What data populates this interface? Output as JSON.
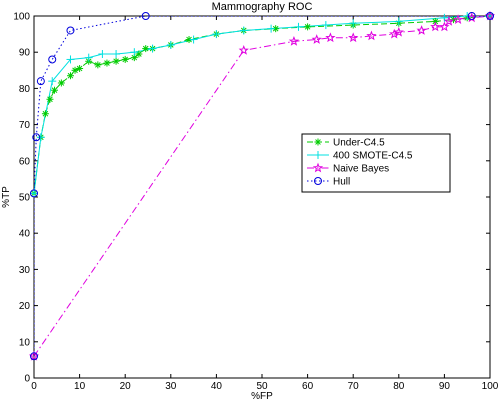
{
  "chart_data": {
    "type": "line",
    "title": "Mammography ROC",
    "xlabel": "%FP",
    "ylabel": "%TP",
    "xlim": [
      0,
      100
    ],
    "ylim": [
      0,
      100
    ],
    "xticks": [
      0,
      10,
      20,
      30,
      40,
      50,
      60,
      70,
      80,
      90,
      100
    ],
    "yticks": [
      0,
      10,
      20,
      30,
      40,
      50,
      60,
      70,
      80,
      90,
      100
    ],
    "grid": false,
    "legend_position": "right-center",
    "series": [
      {
        "name": "Under-C4.5",
        "color": "#00cc00",
        "line": "dashed",
        "marker": "asterisk",
        "x": [
          0,
          1.5,
          2.5,
          3.5,
          4.5,
          6,
          8,
          9,
          10,
          12,
          14,
          16,
          18,
          20,
          22,
          23,
          24.5,
          26,
          30,
          34,
          40,
          46,
          53,
          60,
          70,
          80,
          88,
          92,
          95,
          100
        ],
        "y": [
          51,
          66.5,
          73,
          77,
          79.5,
          81.5,
          83.5,
          85,
          85.5,
          87.5,
          86.5,
          87,
          87.5,
          88,
          88.5,
          89.5,
          91,
          91,
          92,
          93.5,
          95,
          96,
          96.5,
          97,
          97.5,
          98,
          98.5,
          99,
          99.5,
          100
        ]
      },
      {
        "name": "400 SMOTE-C4.5",
        "color": "#00e0e0",
        "line": "solid",
        "marker": "plus",
        "x": [
          0,
          1.5,
          4,
          8,
          12,
          15,
          18,
          22,
          26,
          30,
          35,
          40,
          46,
          52,
          58,
          64,
          70,
          80,
          90,
          95,
          100
        ],
        "y": [
          51,
          66.5,
          82,
          88,
          88.5,
          89.5,
          89.5,
          90,
          91,
          92,
          93.5,
          95,
          96,
          96.5,
          97,
          97.5,
          98,
          98.5,
          99.5,
          100,
          100
        ]
      },
      {
        "name": "Naive Bayes",
        "color": "#e000e0",
        "line": "dashdot",
        "marker": "star",
        "x": [
          0,
          46,
          57,
          62,
          65,
          70,
          74,
          79,
          80,
          85,
          88,
          90,
          91,
          93,
          96,
          100
        ],
        "y": [
          6,
          90.5,
          93,
          93.5,
          94,
          94,
          94.5,
          95,
          95.5,
          96,
          97,
          97,
          98.5,
          99,
          99.5,
          100
        ]
      },
      {
        "name": "Hull",
        "color": "#0000dd",
        "line": "dotted",
        "marker": "circle",
        "x": [
          0,
          0,
          0.5,
          1.5,
          4,
          8,
          24.5,
          96,
          100
        ],
        "y": [
          6,
          51,
          66.5,
          82,
          88,
          96,
          100,
          100,
          100
        ]
      }
    ]
  }
}
